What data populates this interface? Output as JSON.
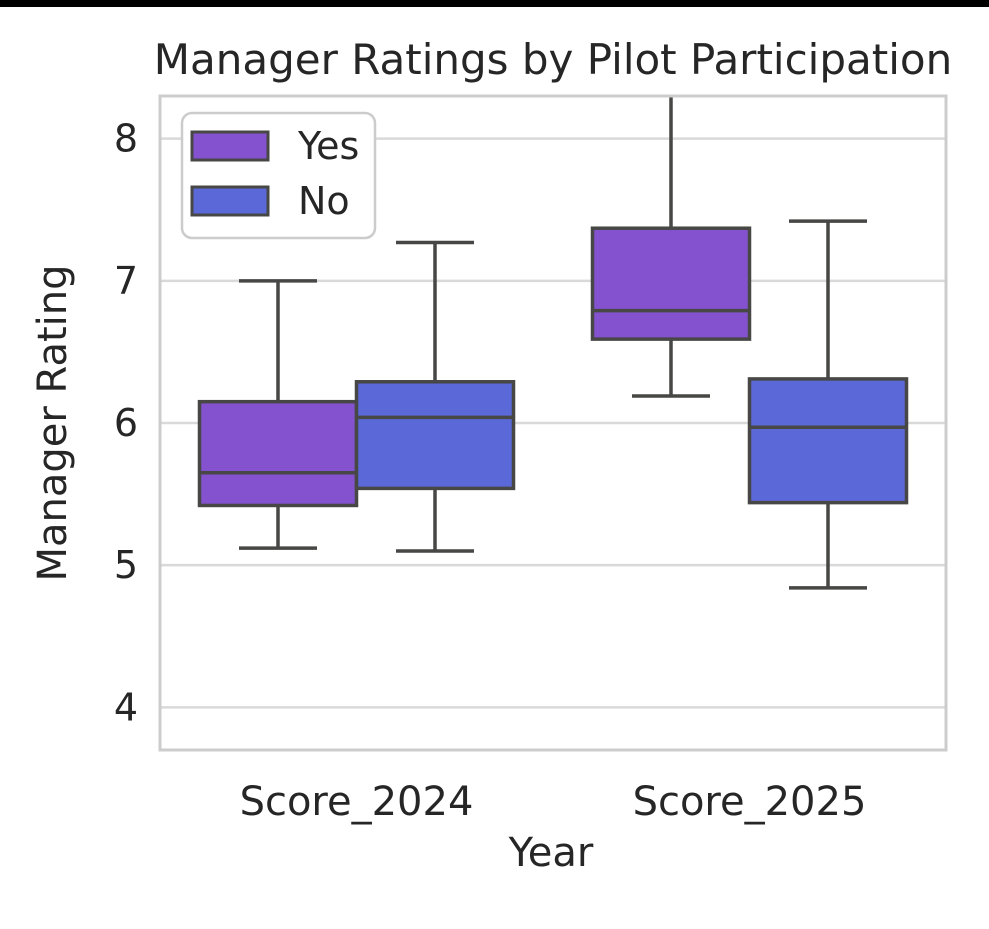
{
  "page": {
    "top_bar_color": "#000000",
    "background_color": "#ffffff",
    "text_color": "#262626"
  },
  "chart_data": {
    "type": "boxplot",
    "title": "Manager Ratings by Pilot Participation",
    "xlabel": "Year",
    "ylabel": "Manager Rating",
    "categories": [
      "Score_2024",
      "Score_2025"
    ],
    "yticks": [
      8,
      7,
      6,
      5,
      4
    ],
    "ylim": [
      3.7,
      8.3
    ],
    "grid": "horizontal",
    "legend": {
      "position": "upper left",
      "entries": [
        {
          "label": "Yes",
          "color": "#8452cf"
        },
        {
          "label": "No",
          "color": "#5b68d8"
        }
      ]
    },
    "series": [
      {
        "name": "Yes",
        "color": "#8452cf",
        "boxes": [
          {
            "category": "Score_2024",
            "whislo": 5.12,
            "q1": 5.42,
            "med": 5.65,
            "q3": 6.15,
            "whishi": 7.0,
            "whishi_clipped": false
          },
          {
            "category": "Score_2025",
            "whislo": 6.19,
            "q1": 6.59,
            "med": 6.79,
            "q3": 7.37,
            "whishi": 8.3,
            "whishi_clipped": true
          }
        ]
      },
      {
        "name": "No",
        "color": "#5b68d8",
        "boxes": [
          {
            "category": "Score_2024",
            "whislo": 5.1,
            "q1": 5.54,
            "med": 6.04,
            "q3": 6.29,
            "whishi": 7.27,
            "whishi_clipped": false
          },
          {
            "category": "Score_2025",
            "whislo": 4.84,
            "q1": 5.44,
            "med": 5.97,
            "q3": 6.31,
            "whishi": 7.42,
            "whishi_clipped": false
          }
        ]
      }
    ]
  }
}
